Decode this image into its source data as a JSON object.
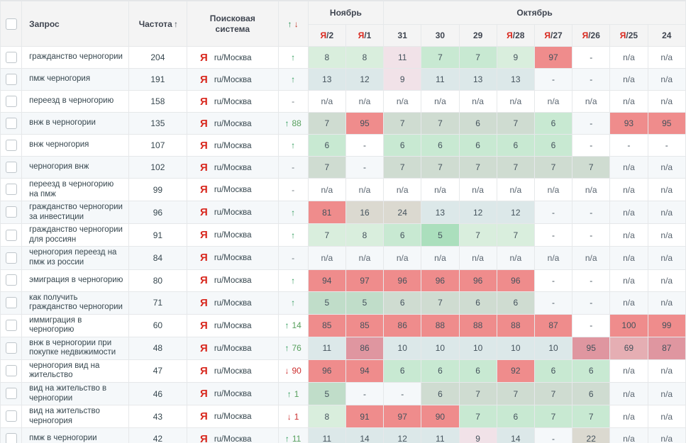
{
  "header": {
    "columns": {
      "query": "Запрос",
      "frequency": "Частота",
      "engine": "Поисковая система",
      "change_up": "↑",
      "change_down": "↓",
      "freq_sort": "↑"
    },
    "months": [
      {
        "label": "Ноябрь",
        "span": 2
      },
      {
        "label": "Октябрь",
        "span": 8
      }
    ],
    "dates": [
      {
        "label": "Я/2",
        "yandex": true,
        "day": "2"
      },
      {
        "label": "Я/1",
        "yandex": true,
        "day": "1"
      },
      {
        "label": "31",
        "yandex": false,
        "day": "31"
      },
      {
        "label": "30",
        "yandex": false,
        "day": "30"
      },
      {
        "label": "29",
        "yandex": false,
        "day": "29"
      },
      {
        "label": "Я/28",
        "yandex": true,
        "day": "28"
      },
      {
        "label": "Я/27",
        "yandex": true,
        "day": "27"
      },
      {
        "label": "Я/26",
        "yandex": true,
        "day": "26"
      },
      {
        "label": "Я/25",
        "yandex": true,
        "day": "25"
      },
      {
        "label": "24",
        "yandex": false,
        "day": "24"
      }
    ]
  },
  "engine": {
    "icon": "Я",
    "label": "ru/Москва"
  },
  "palette": {
    "g0": "#abdfbd",
    "g1": "#c8e9d2",
    "g2": "#d9eedd",
    "g3": "#cfdcd1",
    "g4": "#c0ddc9",
    "lb": "#dce8e9",
    "pk": "#f1e2e8",
    "rd": "#ef8c8c",
    "r2": "#df96a0",
    "r3": "#e5aeb3",
    "tn": "#dbd9d0",
    "w": ""
  },
  "accents": {
    "up": "#2c9a58",
    "down": "#cc2f2f",
    "yandex": "#d8271d"
  },
  "rows": [
    {
      "query": "гражданство черногории",
      "frequency": "204",
      "change": {
        "dir": "up",
        "value": ""
      },
      "cells": [
        {
          "v": "8",
          "c": "g2"
        },
        {
          "v": "8",
          "c": "g2"
        },
        {
          "v": "11",
          "c": "pk"
        },
        {
          "v": "7",
          "c": "g1"
        },
        {
          "v": "7",
          "c": "g1"
        },
        {
          "v": "9",
          "c": "g2"
        },
        {
          "v": "97",
          "c": "rd"
        },
        {
          "v": "-",
          "c": "w"
        },
        {
          "v": "n/a",
          "c": "w"
        },
        {
          "v": "n/a",
          "c": "w"
        }
      ]
    },
    {
      "query": "пмж черногория",
      "frequency": "191",
      "change": {
        "dir": "up",
        "value": ""
      },
      "cells": [
        {
          "v": "13",
          "c": "lb"
        },
        {
          "v": "12",
          "c": "lb"
        },
        {
          "v": "9",
          "c": "pk"
        },
        {
          "v": "11",
          "c": "lb"
        },
        {
          "v": "13",
          "c": "lb"
        },
        {
          "v": "13",
          "c": "lb"
        },
        {
          "v": "-",
          "c": "w"
        },
        {
          "v": "-",
          "c": "w"
        },
        {
          "v": "n/a",
          "c": "w"
        },
        {
          "v": "n/a",
          "c": "w"
        }
      ]
    },
    {
      "query": "переезд в черногорию",
      "frequency": "158",
      "change": {
        "dir": "none",
        "value": ""
      },
      "cells": [
        {
          "v": "n/a",
          "c": "w"
        },
        {
          "v": "n/a",
          "c": "w"
        },
        {
          "v": "n/a",
          "c": "w"
        },
        {
          "v": "n/a",
          "c": "w"
        },
        {
          "v": "n/a",
          "c": "w"
        },
        {
          "v": "n/a",
          "c": "w"
        },
        {
          "v": "n/a",
          "c": "w"
        },
        {
          "v": "n/a",
          "c": "w"
        },
        {
          "v": "n/a",
          "c": "w"
        },
        {
          "v": "n/a",
          "c": "w"
        }
      ]
    },
    {
      "query": "внж в черногории",
      "frequency": "135",
      "change": {
        "dir": "up",
        "value": "88"
      },
      "cells": [
        {
          "v": "7",
          "c": "g3"
        },
        {
          "v": "95",
          "c": "rd"
        },
        {
          "v": "7",
          "c": "g3"
        },
        {
          "v": "7",
          "c": "g3"
        },
        {
          "v": "6",
          "c": "g3"
        },
        {
          "v": "7",
          "c": "g3"
        },
        {
          "v": "6",
          "c": "g1"
        },
        {
          "v": "-",
          "c": "w"
        },
        {
          "v": "93",
          "c": "rd"
        },
        {
          "v": "95",
          "c": "rd"
        }
      ]
    },
    {
      "query": "внж черногория",
      "frequency": "107",
      "change": {
        "dir": "up",
        "value": ""
      },
      "cells": [
        {
          "v": "6",
          "c": "g1"
        },
        {
          "v": "-",
          "c": "w"
        },
        {
          "v": "6",
          "c": "g1"
        },
        {
          "v": "6",
          "c": "g1"
        },
        {
          "v": "6",
          "c": "g1"
        },
        {
          "v": "6",
          "c": "g1"
        },
        {
          "v": "6",
          "c": "g1"
        },
        {
          "v": "-",
          "c": "w"
        },
        {
          "v": "-",
          "c": "w"
        },
        {
          "v": "-",
          "c": "w"
        }
      ]
    },
    {
      "query": "черногория внж",
      "frequency": "102",
      "change": {
        "dir": "none",
        "value": ""
      },
      "cells": [
        {
          "v": "7",
          "c": "g3"
        },
        {
          "v": "-",
          "c": "w"
        },
        {
          "v": "7",
          "c": "g3"
        },
        {
          "v": "7",
          "c": "g3"
        },
        {
          "v": "7",
          "c": "g3"
        },
        {
          "v": "7",
          "c": "g3"
        },
        {
          "v": "7",
          "c": "g3"
        },
        {
          "v": "7",
          "c": "g3"
        },
        {
          "v": "n/a",
          "c": "w"
        },
        {
          "v": "n/a",
          "c": "w"
        }
      ]
    },
    {
      "query": "переезд в черногорию на пмж",
      "frequency": "99",
      "change": {
        "dir": "none",
        "value": ""
      },
      "cells": [
        {
          "v": "n/a",
          "c": "w"
        },
        {
          "v": "n/a",
          "c": "w"
        },
        {
          "v": "n/a",
          "c": "w"
        },
        {
          "v": "n/a",
          "c": "w"
        },
        {
          "v": "n/a",
          "c": "w"
        },
        {
          "v": "n/a",
          "c": "w"
        },
        {
          "v": "n/a",
          "c": "w"
        },
        {
          "v": "n/a",
          "c": "w"
        },
        {
          "v": "n/a",
          "c": "w"
        },
        {
          "v": "n/a",
          "c": "w"
        }
      ]
    },
    {
      "query": "гражданство черногории за инвестиции",
      "frequency": "96",
      "change": {
        "dir": "up",
        "value": ""
      },
      "cells": [
        {
          "v": "81",
          "c": "rd"
        },
        {
          "v": "16",
          "c": "tn"
        },
        {
          "v": "24",
          "c": "tn"
        },
        {
          "v": "13",
          "c": "lb"
        },
        {
          "v": "12",
          "c": "lb"
        },
        {
          "v": "12",
          "c": "lb"
        },
        {
          "v": "-",
          "c": "w"
        },
        {
          "v": "-",
          "c": "w"
        },
        {
          "v": "n/a",
          "c": "w"
        },
        {
          "v": "n/a",
          "c": "w"
        }
      ]
    },
    {
      "query": "гражданство черногории для россиян",
      "frequency": "91",
      "change": {
        "dir": "up",
        "value": ""
      },
      "cells": [
        {
          "v": "7",
          "c": "g2"
        },
        {
          "v": "8",
          "c": "g2"
        },
        {
          "v": "6",
          "c": "g1"
        },
        {
          "v": "5",
          "c": "g0"
        },
        {
          "v": "7",
          "c": "g2"
        },
        {
          "v": "7",
          "c": "g2"
        },
        {
          "v": "-",
          "c": "w"
        },
        {
          "v": "-",
          "c": "w"
        },
        {
          "v": "n/a",
          "c": "w"
        },
        {
          "v": "n/a",
          "c": "w"
        }
      ]
    },
    {
      "query": "черногория переезд на пмж из россии",
      "frequency": "84",
      "change": {
        "dir": "none",
        "value": ""
      },
      "cells": [
        {
          "v": "n/a",
          "c": "w"
        },
        {
          "v": "n/a",
          "c": "w"
        },
        {
          "v": "n/a",
          "c": "w"
        },
        {
          "v": "n/a",
          "c": "w"
        },
        {
          "v": "n/a",
          "c": "w"
        },
        {
          "v": "n/a",
          "c": "w"
        },
        {
          "v": "n/a",
          "c": "w"
        },
        {
          "v": "n/a",
          "c": "w"
        },
        {
          "v": "n/a",
          "c": "w"
        },
        {
          "v": "n/a",
          "c": "w"
        }
      ]
    },
    {
      "query": "эмиграция в черногорию",
      "frequency": "80",
      "change": {
        "dir": "up",
        "value": ""
      },
      "cells": [
        {
          "v": "94",
          "c": "rd"
        },
        {
          "v": "97",
          "c": "rd"
        },
        {
          "v": "96",
          "c": "rd"
        },
        {
          "v": "96",
          "c": "rd"
        },
        {
          "v": "96",
          "c": "rd"
        },
        {
          "v": "96",
          "c": "rd"
        },
        {
          "v": "-",
          "c": "w"
        },
        {
          "v": "-",
          "c": "w"
        },
        {
          "v": "n/a",
          "c": "w"
        },
        {
          "v": "n/a",
          "c": "w"
        }
      ]
    },
    {
      "query": "как получить гражданство черногории",
      "frequency": "71",
      "change": {
        "dir": "up",
        "value": ""
      },
      "cells": [
        {
          "v": "5",
          "c": "g4"
        },
        {
          "v": "5",
          "c": "g4"
        },
        {
          "v": "6",
          "c": "g3"
        },
        {
          "v": "7",
          "c": "g3"
        },
        {
          "v": "6",
          "c": "g3"
        },
        {
          "v": "6",
          "c": "g3"
        },
        {
          "v": "-",
          "c": "w"
        },
        {
          "v": "-",
          "c": "w"
        },
        {
          "v": "n/a",
          "c": "w"
        },
        {
          "v": "n/a",
          "c": "w"
        }
      ]
    },
    {
      "query": "иммиграция в черногорию",
      "frequency": "60",
      "change": {
        "dir": "up",
        "value": "14"
      },
      "cells": [
        {
          "v": "85",
          "c": "rd"
        },
        {
          "v": "85",
          "c": "rd"
        },
        {
          "v": "86",
          "c": "rd"
        },
        {
          "v": "88",
          "c": "rd"
        },
        {
          "v": "88",
          "c": "rd"
        },
        {
          "v": "88",
          "c": "rd"
        },
        {
          "v": "87",
          "c": "rd"
        },
        {
          "v": "-",
          "c": "w"
        },
        {
          "v": "100",
          "c": "rd"
        },
        {
          "v": "99",
          "c": "rd"
        }
      ]
    },
    {
      "query": "внж в черногории при покупке недвижимости",
      "frequency": "48",
      "change": {
        "dir": "up",
        "value": "76"
      },
      "cells": [
        {
          "v": "11",
          "c": "lb"
        },
        {
          "v": "86",
          "c": "r2"
        },
        {
          "v": "10",
          "c": "lb"
        },
        {
          "v": "10",
          "c": "lb"
        },
        {
          "v": "10",
          "c": "lb"
        },
        {
          "v": "10",
          "c": "lb"
        },
        {
          "v": "10",
          "c": "lb"
        },
        {
          "v": "95",
          "c": "r2"
        },
        {
          "v": "69",
          "c": "r3"
        },
        {
          "v": "87",
          "c": "r2"
        }
      ]
    },
    {
      "query": "черногория вид на жительство",
      "frequency": "47",
      "change": {
        "dir": "down",
        "value": "90"
      },
      "cells": [
        {
          "v": "96",
          "c": "rd"
        },
        {
          "v": "94",
          "c": "rd"
        },
        {
          "v": "6",
          "c": "g1"
        },
        {
          "v": "6",
          "c": "g1"
        },
        {
          "v": "6",
          "c": "g1"
        },
        {
          "v": "92",
          "c": "rd"
        },
        {
          "v": "6",
          "c": "g1"
        },
        {
          "v": "6",
          "c": "g1"
        },
        {
          "v": "n/a",
          "c": "w"
        },
        {
          "v": "n/a",
          "c": "w"
        }
      ]
    },
    {
      "query": "вид на жительство в черногории",
      "frequency": "46",
      "change": {
        "dir": "up",
        "value": "1"
      },
      "cells": [
        {
          "v": "5",
          "c": "g4"
        },
        {
          "v": "-",
          "c": "w"
        },
        {
          "v": "-",
          "c": "w"
        },
        {
          "v": "6",
          "c": "g3"
        },
        {
          "v": "7",
          "c": "g3"
        },
        {
          "v": "7",
          "c": "g3"
        },
        {
          "v": "7",
          "c": "g3"
        },
        {
          "v": "6",
          "c": "g3"
        },
        {
          "v": "n/a",
          "c": "w"
        },
        {
          "v": "n/a",
          "c": "w"
        }
      ]
    },
    {
      "query": "вид на жительство черногория",
      "frequency": "43",
      "change": {
        "dir": "down",
        "value": "1"
      },
      "cells": [
        {
          "v": "8",
          "c": "g2"
        },
        {
          "v": "91",
          "c": "rd"
        },
        {
          "v": "97",
          "c": "rd"
        },
        {
          "v": "90",
          "c": "rd"
        },
        {
          "v": "7",
          "c": "g1"
        },
        {
          "v": "6",
          "c": "g1"
        },
        {
          "v": "7",
          "c": "g1"
        },
        {
          "v": "7",
          "c": "g1"
        },
        {
          "v": "n/a",
          "c": "w"
        },
        {
          "v": "n/a",
          "c": "w"
        }
      ]
    },
    {
      "query": "пмж в черногории",
      "frequency": "42",
      "change": {
        "dir": "up",
        "value": "11"
      },
      "cells": [
        {
          "v": "11",
          "c": "lb"
        },
        {
          "v": "14",
          "c": "lb"
        },
        {
          "v": "12",
          "c": "lb"
        },
        {
          "v": "11",
          "c": "lb"
        },
        {
          "v": "9",
          "c": "pk"
        },
        {
          "v": "14",
          "c": "lb"
        },
        {
          "v": "-",
          "c": "w"
        },
        {
          "v": "22",
          "c": "tn"
        },
        {
          "v": "n/a",
          "c": "w"
        },
        {
          "v": "n/a",
          "c": "w"
        }
      ]
    }
  ]
}
